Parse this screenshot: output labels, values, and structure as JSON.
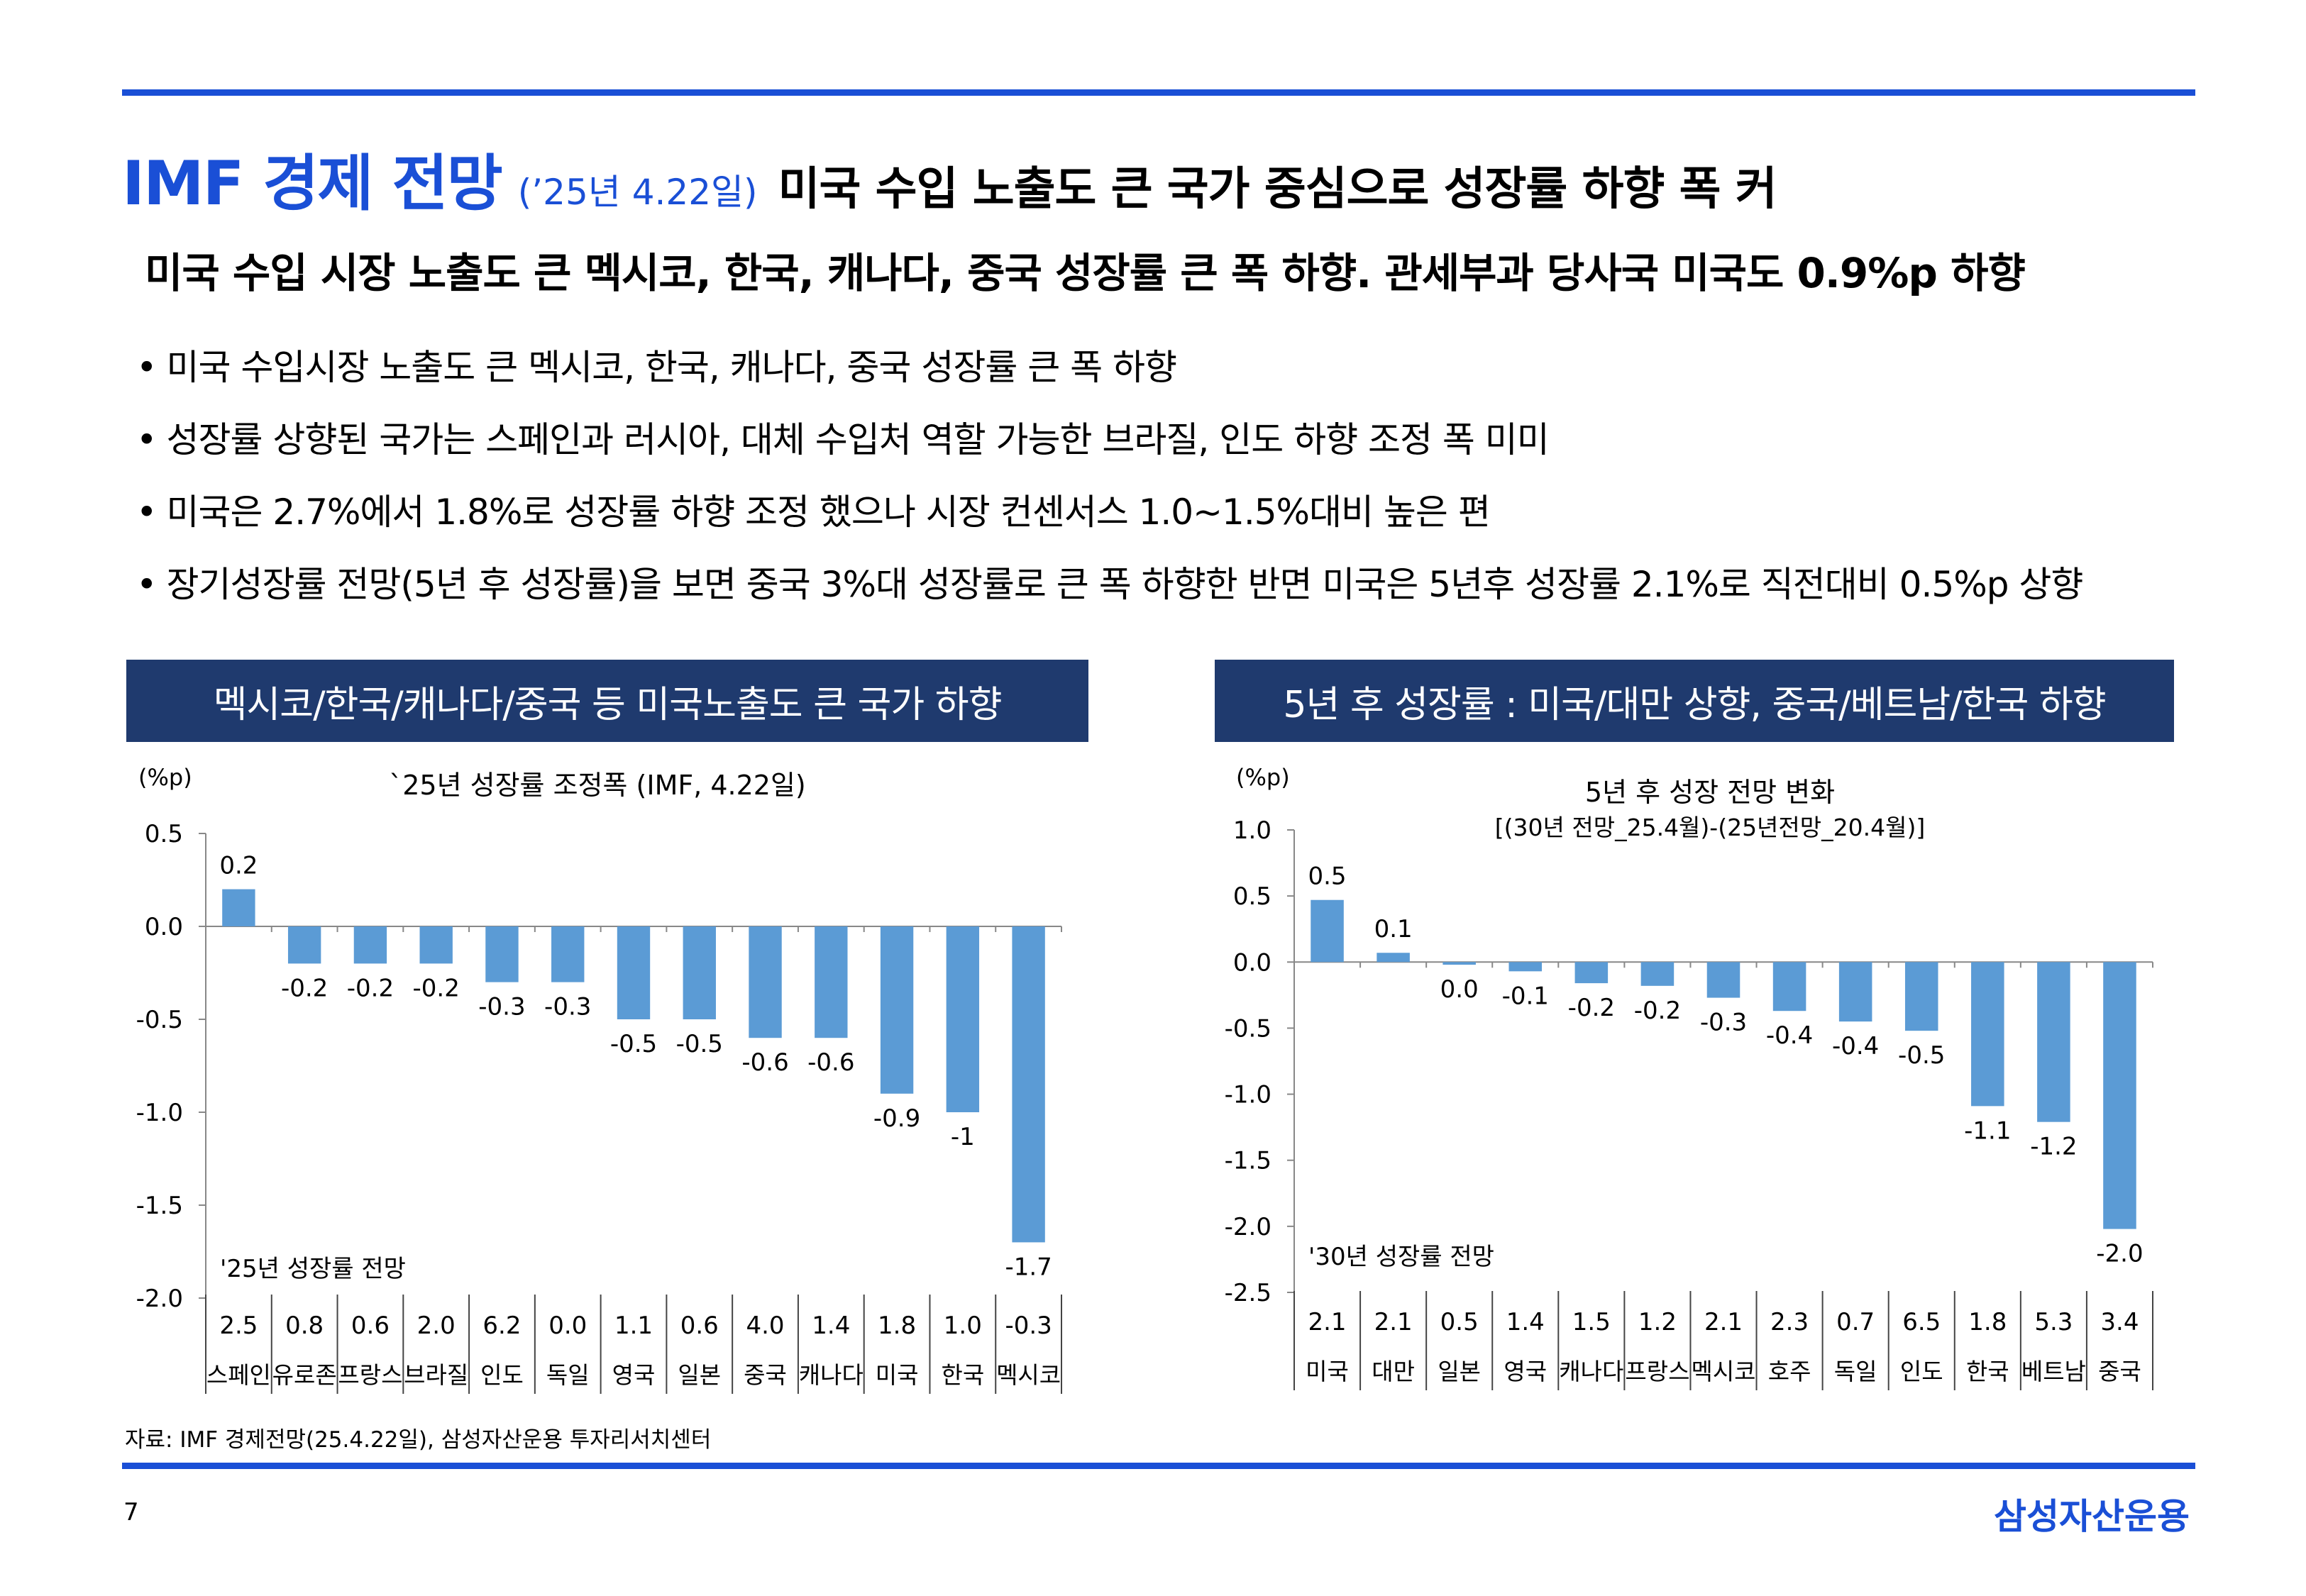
{
  "header": {
    "title_main": "IMF 경제 전망",
    "title_date": "(’25년 4.22일)",
    "title_sub": "미국 수입 노출도 큰 국가 중심으로 성장률 하향 폭 커"
  },
  "headline": "미국 수입 시장 노출도 큰 멕시코, 한국, 캐나다, 중국 성장률 큰 폭 하향. 관세부과 당사국 미국도 0.9%p 하향",
  "bullets": [
    "미국 수입시장 노출도 큰 멕시코, 한국, 캐나다, 중국 성장률 큰 폭 하향",
    "성장률 상향된 국가는 스페인과 러시아, 대체 수입처 역할 가능한 브라질, 인도 하향 조정 폭 미미",
    "미국은 2.7%에서 1.8%로 성장률 하향 조정 했으나 시장 컨센서스 1.0~1.5%대비 높은 편",
    "장기성장률 전망(5년 후 성장률)을 보면 중국 3%대 성장률로 큰 폭 하향한 반면 미국은 5년후 성장률 2.1%로 직전대비 0.5%p 상향"
  ],
  "bullet_symbol": "•",
  "banners": {
    "left": "멕시코/한국/캐나다/중국 등 미국노출도 큰 국가 하향",
    "right": "5년 후 성장률 : 미국/대만 상향, 중국/베트남/한국 하향"
  },
  "chart_data": [
    {
      "type": "bar",
      "title": "`25년 성장률 조정폭 (IMF, 4.22일)",
      "subtitle": "",
      "ylabel": "(%p)",
      "ylim": [
        -2.0,
        0.5
      ],
      "yticks": [
        0.5,
        0.0,
        -0.5,
        -1.0,
        -1.5,
        -2.0
      ],
      "ytick_labels": [
        "0.5",
        "0.0",
        "-0.5",
        "-1.0",
        "-1.5",
        "-2.0"
      ],
      "categories": [
        "스페인",
        "유로존",
        "프랑스",
        "브라질",
        "인도",
        "독일",
        "영국",
        "일본",
        "중국",
        "캐나다",
        "미국",
        "한국",
        "멕시코"
      ],
      "values": [
        0.2,
        -0.2,
        -0.2,
        -0.2,
        -0.3,
        -0.3,
        -0.5,
        -0.5,
        -0.6,
        -0.6,
        -0.9,
        -1.0,
        -1.7
      ],
      "value_labels": [
        "0.2",
        "-0.2",
        "-0.2",
        "-0.2",
        "-0.3",
        "-0.3",
        "-0.5",
        "-0.5",
        "-0.6",
        "-0.6",
        "-0.9",
        "-1",
        "-1.7"
      ],
      "table_title": "'25년 성장률 전망",
      "table_values": [
        "2.5",
        "0.8",
        "0.6",
        "2.0",
        "6.2",
        "0.0",
        "1.1",
        "0.6",
        "4.0",
        "1.4",
        "1.8",
        "1.0",
        "-0.3"
      ],
      "bar_color": "#5b9bd5",
      "grid": false
    },
    {
      "type": "bar",
      "title": "5년 후 성장 전망 변화",
      "subtitle": "[(30년 전망_25.4월)-(25년전망_20.4월)]",
      "ylabel": "(%p)",
      "ylim": [
        -2.5,
        1.0
      ],
      "yticks": [
        1.0,
        0.5,
        0.0,
        -0.5,
        -1.0,
        -1.5,
        -2.0,
        -2.5
      ],
      "ytick_labels": [
        "1.0",
        "0.5",
        "0.0",
        "-0.5",
        "-1.0",
        "-1.5",
        "-2.0",
        "-2.5"
      ],
      "categories": [
        "미국",
        "대만",
        "일본",
        "영국",
        "캐나다",
        "프랑스",
        "멕시코",
        "호주",
        "독일",
        "인도",
        "한국",
        "베트남",
        "중국"
      ],
      "values": [
        0.47,
        0.07,
        -0.02,
        -0.07,
        -0.16,
        -0.18,
        -0.27,
        -0.37,
        -0.45,
        -0.52,
        -1.09,
        -1.21,
        -2.02
      ],
      "value_labels": [
        "0.5",
        "0.1",
        "0.0",
        "-0.1",
        "-0.2",
        "-0.2",
        "-0.3",
        "-0.4",
        "-0.4",
        "-0.5",
        "-1.1",
        "-1.2",
        "-2.0"
      ],
      "table_title": "'30년 성장률 전망",
      "table_values": [
        "2.1",
        "2.1",
        "0.5",
        "1.4",
        "1.5",
        "1.2",
        "2.1",
        "2.3",
        "0.7",
        "6.5",
        "1.8",
        "5.3",
        "3.4"
      ],
      "bar_color": "#5b9bd5",
      "grid": false
    }
  ],
  "footer": {
    "source": "자료: IMF 경제전망(25.4.22일), 삼성자산운용 투자리서치센터",
    "page_number": "7",
    "brand": "삼성자산운용"
  },
  "colors": {
    "accent": "#1a4fd6",
    "banner_bg": "#1f3a6e",
    "bar": "#5b9bd5"
  }
}
